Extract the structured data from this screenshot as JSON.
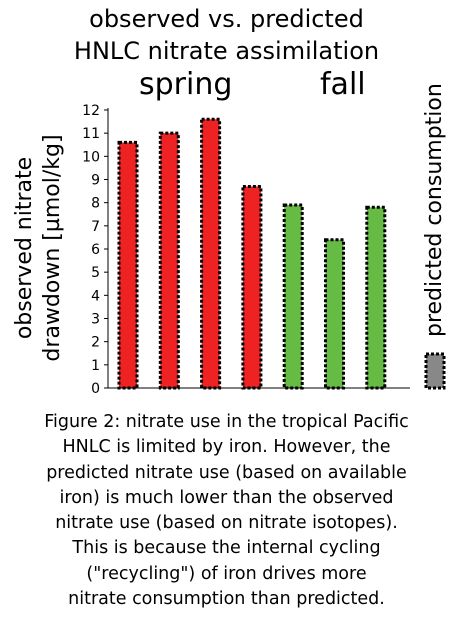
{
  "chart_data": {
    "type": "bar",
    "title": [
      "observed vs. predicted",
      "HNLC nitrate assimilation"
    ],
    "groups": [
      {
        "label": "spring",
        "color": "#ee2222"
      },
      {
        "label": "fall",
        "color": "#66bb44"
      }
    ],
    "series": [
      {
        "name": "observed",
        "values": [
          10.6,
          11.0,
          11.6,
          8.7,
          7.9,
          6.4,
          7.8
        ],
        "groups": [
          "spring",
          "spring",
          "spring",
          "spring",
          "fall",
          "fall",
          "fall"
        ]
      }
    ],
    "ylabel": [
      "observed nitrate",
      "drawdown [µmol/kg]"
    ],
    "ylim": [
      0,
      12
    ],
    "yticks": [
      "0",
      "1",
      "2",
      "3",
      "4",
      "5",
      "6",
      "7",
      "8",
      "9",
      "10",
      "11",
      "12"
    ],
    "legend": {
      "label": "predicted consumption",
      "color": "#888888",
      "placement": "right"
    },
    "grid": false
  },
  "caption": [
    "Figure 2: nitrate use in the tropical Pacific",
    "HNLC is limited by iron. However, the",
    "predicted nitrate use (based on available",
    "iron) is much lower than the observed",
    "nitrate use (based on nitrate isotopes).",
    "This is because the internal cycling",
    "(\"recycling\") of iron drives more",
    "nitrate consumption than predicted."
  ]
}
